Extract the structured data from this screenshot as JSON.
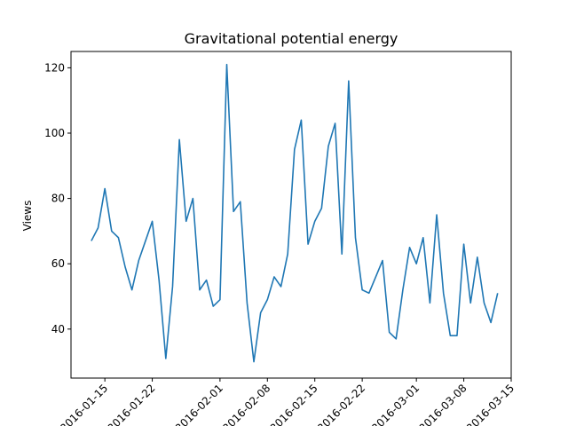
{
  "chart_data": {
    "type": "line",
    "title": "Gravitational potential energy",
    "xlabel": "",
    "ylabel": "Views",
    "x_tick_labels": [
      "2016-01-15",
      "2016-01-22",
      "2016-02-01",
      "2016-02-08",
      "2016-02-15",
      "2016-02-22",
      "2016-03-01",
      "2016-03-08",
      "2016-03-15"
    ],
    "x_tick_dates": [
      "2016-01-15",
      "2016-01-22",
      "2016-02-01",
      "2016-02-08",
      "2016-02-15",
      "2016-02-22",
      "2016-03-01",
      "2016-03-08",
      "2016-03-15"
    ],
    "xlim": [
      "2016-01-10",
      "2016-03-15"
    ],
    "ylim": [
      25,
      125
    ],
    "y_ticks": [
      40,
      60,
      80,
      100,
      120
    ],
    "grid": false,
    "series": [
      {
        "color": "#1f77b4",
        "points": [
          [
            "2016-01-13",
            67
          ],
          [
            "2016-01-14",
            71
          ],
          [
            "2016-01-15",
            83
          ],
          [
            "2016-01-16",
            70
          ],
          [
            "2016-01-17",
            68
          ],
          [
            "2016-01-18",
            59
          ],
          [
            "2016-01-19",
            52
          ],
          [
            "2016-01-20",
            61
          ],
          [
            "2016-01-21",
            67
          ],
          [
            "2016-01-22",
            73
          ],
          [
            "2016-01-23",
            55
          ],
          [
            "2016-01-24",
            31
          ],
          [
            "2016-01-25",
            53
          ],
          [
            "2016-01-26",
            98
          ],
          [
            "2016-01-27",
            73
          ],
          [
            "2016-01-28",
            80
          ],
          [
            "2016-01-29",
            52
          ],
          [
            "2016-01-30",
            55
          ],
          [
            "2016-01-31",
            47
          ],
          [
            "2016-02-01",
            49
          ],
          [
            "2016-02-02",
            121
          ],
          [
            "2016-02-03",
            76
          ],
          [
            "2016-02-04",
            79
          ],
          [
            "2016-02-05",
            48
          ],
          [
            "2016-02-06",
            30
          ],
          [
            "2016-02-07",
            45
          ],
          [
            "2016-02-08",
            49
          ],
          [
            "2016-02-09",
            56
          ],
          [
            "2016-02-10",
            53
          ],
          [
            "2016-02-11",
            63
          ],
          [
            "2016-02-12",
            95
          ],
          [
            "2016-02-13",
            104
          ],
          [
            "2016-02-14",
            66
          ],
          [
            "2016-02-15",
            73
          ],
          [
            "2016-02-16",
            77
          ],
          [
            "2016-02-17",
            96
          ],
          [
            "2016-02-18",
            103
          ],
          [
            "2016-02-19",
            63
          ],
          [
            "2016-02-20",
            116
          ],
          [
            "2016-02-21",
            68
          ],
          [
            "2016-02-22",
            52
          ],
          [
            "2016-02-23",
            51
          ],
          [
            "2016-02-25",
            61
          ],
          [
            "2016-02-26",
            39
          ],
          [
            "2016-02-27",
            37
          ],
          [
            "2016-02-28",
            52
          ],
          [
            "2016-02-29",
            65
          ],
          [
            "2016-03-01",
            60
          ],
          [
            "2016-03-02",
            68
          ],
          [
            "2016-03-03",
            48
          ],
          [
            "2016-03-04",
            75
          ],
          [
            "2016-03-05",
            51
          ],
          [
            "2016-03-06",
            38
          ],
          [
            "2016-03-07",
            38
          ],
          [
            "2016-03-08",
            66
          ],
          [
            "2016-03-09",
            48
          ],
          [
            "2016-03-10",
            62
          ],
          [
            "2016-03-11",
            48
          ],
          [
            "2016-03-12",
            42
          ],
          [
            "2016-03-13",
            51
          ]
        ]
      }
    ]
  }
}
